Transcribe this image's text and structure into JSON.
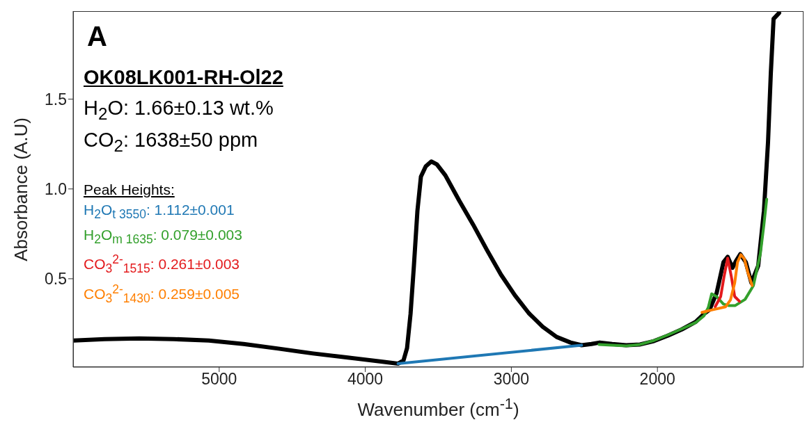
{
  "chart_data": {
    "type": "line",
    "xlabel": "Wavenumber (cm$^{-1}$)",
    "ylabel": "Absorbance (A.U)",
    "xlim": [
      6000,
      1000
    ],
    "xticks": [
      5000,
      4000,
      3000,
      2000
    ],
    "ylim": [
      0.008,
      1.99
    ],
    "yticks": [
      0.5,
      {
        "value": 1,
        "label": "1.0"
      },
      1.5
    ],
    "grid": false,
    "legend": "left",
    "legend_title": "Peak Heights:",
    "marker": "none",
    "line_style": "solid",
    "annotations": [
      "A",
      "OK08LK001-RH-Ol22",
      "H$_{2}$O: 1.66±0.13 wt.%",
      "CO$_{2}$: 1638±50 ppm"
    ],
    "series": [
      {
        "color": "#000000",
        "x": [
          5995,
          5786,
          5548,
          5310,
          5071,
          4833,
          4595,
          4357,
          4119,
          3881,
          3776,
          3738,
          3714,
          3690,
          3667,
          3643,
          3619,
          3586,
          3548,
          3510,
          3452,
          3357,
          3262,
          3167,
          3071,
          2976,
          2881,
          2786,
          2690,
          2595,
          2519,
          2452,
          2395,
          2310,
          2214,
          2119,
          2024,
          1929,
          1833,
          1738,
          1681,
          1643,
          1595,
          1548,
          1519,
          1486,
          1462,
          1433,
          1395,
          1357,
          1310,
          1271,
          1243,
          1224,
          1205,
          1167
        ],
        "values": [
          0.156,
          0.164,
          0.168,
          0.164,
          0.156,
          0.137,
          0.111,
          0.084,
          0.061,
          0.038,
          0.027,
          0.046,
          0.114,
          0.305,
          0.573,
          0.878,
          1.069,
          1.126,
          1.153,
          1.137,
          1.076,
          0.935,
          0.802,
          0.66,
          0.523,
          0.408,
          0.309,
          0.233,
          0.176,
          0.145,
          0.13,
          0.137,
          0.145,
          0.137,
          0.13,
          0.134,
          0.153,
          0.183,
          0.218,
          0.26,
          0.305,
          0.328,
          0.42,
          0.592,
          0.622,
          0.561,
          0.599,
          0.637,
          0.592,
          0.477,
          0.573,
          0.878,
          1.26,
          1.641,
          1.947,
          1.98
        ]
      },
      {
        "name": "H$_{2}$O$_{t 3550}$: 1.112±0.001",
        "color": "#1f78b4",
        "x": [
          3776,
          2519
        ],
        "values": [
          0.027,
          0.13
        ]
      },
      {
        "name": "H$_{2}$O$_{m 1635}$: 0.079±0.003",
        "color": "#33a02c",
        "x": [
          2400,
          2310,
          2214,
          2119,
          2024,
          1929,
          1833,
          1738,
          1681,
          1652,
          1629,
          1595,
          1548,
          1514,
          1467,
          1400,
          1343,
          1295,
          1271,
          1252
        ],
        "values": [
          0.134,
          0.13,
          0.126,
          0.134,
          0.156,
          0.187,
          0.221,
          0.256,
          0.294,
          0.34,
          0.416,
          0.401,
          0.359,
          0.351,
          0.351,
          0.385,
          0.462,
          0.641,
          0.802,
          0.943
        ]
      },
      {
        "name": "CO$_{3}$$^{2-}$$_{1515}$: 0.261±0.003",
        "color": "#e31a1c",
        "x": [
          1605,
          1567,
          1543,
          1519,
          1495,
          1471,
          1438
        ],
        "values": [
          0.344,
          0.401,
          0.516,
          0.615,
          0.516,
          0.401,
          0.374
        ]
      },
      {
        "name": "CO$_{3}$$^{2-}$$_{1430}$: 0.259±0.005",
        "color": "#ff7f00",
        "x": [
          1695,
          1619,
          1533,
          1500,
          1471,
          1452,
          1429,
          1405,
          1381,
          1352
        ],
        "values": [
          0.313,
          0.328,
          0.344,
          0.382,
          0.477,
          0.592,
          0.634,
          0.611,
          0.535,
          0.462
        ]
      }
    ]
  }
}
